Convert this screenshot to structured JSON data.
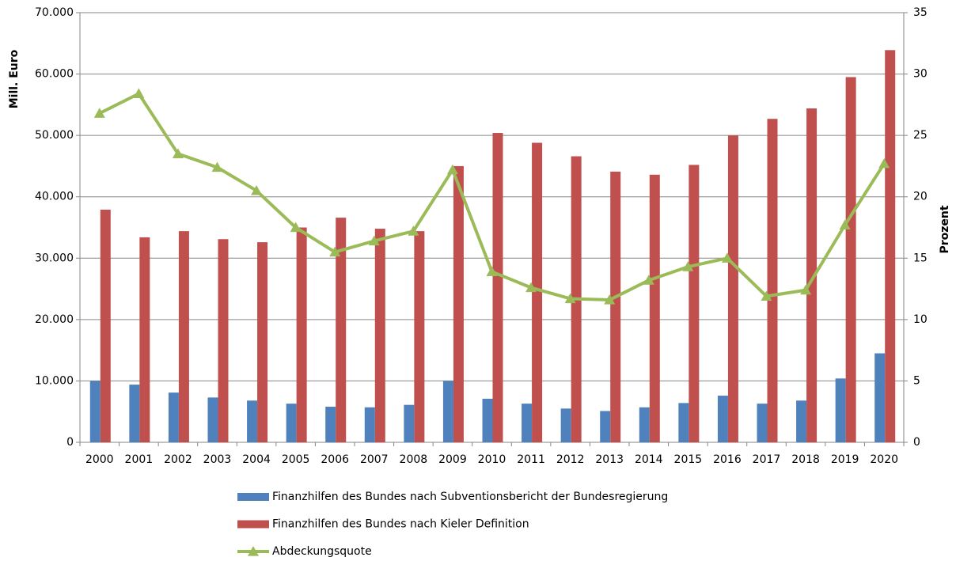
{
  "chart_data": {
    "type": "bar-line",
    "categories": [
      "2000",
      "2001",
      "2002",
      "2003",
      "2004",
      "2005",
      "2006",
      "2007",
      "2008",
      "2009",
      "2010",
      "2011",
      "2012",
      "2013",
      "2014",
      "2015",
      "2016",
      "2017",
      "2018",
      "2019",
      "2020"
    ],
    "series": [
      {
        "name": "Finanzhilfen des Bundes nach Subventionsbericht der Bundesregierung",
        "color": "#4f81bd",
        "type": "bar",
        "values": [
          10000,
          9400,
          8100,
          7300,
          6800,
          6300,
          5800,
          5700,
          6100,
          10000,
          7100,
          6300,
          5500,
          5100,
          5700,
          6400,
          7600,
          6300,
          6800,
          10400,
          14500
        ]
      },
      {
        "name": "Finanzhilfen des Bundes nach Kieler Definition",
        "color": "#c0504d",
        "type": "bar",
        "values": [
          37900,
          33400,
          34400,
          33100,
          32600,
          35000,
          36600,
          34800,
          34400,
          45000,
          50400,
          48800,
          46600,
          44100,
          43600,
          45200,
          50000,
          52700,
          54400,
          59500,
          63900
        ]
      },
      {
        "name": "Abdeckungsquote",
        "color": "#9bbb59",
        "type": "line",
        "axis": "y2",
        "values": [
          26.8,
          28.4,
          23.5,
          22.4,
          20.5,
          17.5,
          15.5,
          16.4,
          17.2,
          22.2,
          13.9,
          12.6,
          11.7,
          11.6,
          13.2,
          14.3,
          15.0,
          11.9,
          12.4,
          17.7,
          22.7
        ]
      }
    ],
    "y_label": "Mill. Euro",
    "y2_label": "Prozent",
    "ylim": [
      0,
      70000
    ],
    "yticks": [
      0,
      {
        "value": 10000,
        "label": "10.000"
      },
      {
        "value": 20000,
        "label": "20.000"
      },
      {
        "value": 30000,
        "label": "30.000"
      },
      {
        "value": 40000,
        "label": "40.000"
      },
      {
        "value": 50000,
        "label": "50.000"
      },
      {
        "value": 60000,
        "label": "60.000"
      },
      {
        "value": 70000,
        "label": "70.000"
      }
    ],
    "y2lim": [
      0,
      35
    ],
    "y2ticks": [
      0,
      5,
      10,
      15,
      20,
      25,
      30,
      35
    ],
    "grid": true,
    "legend": "bottom"
  }
}
